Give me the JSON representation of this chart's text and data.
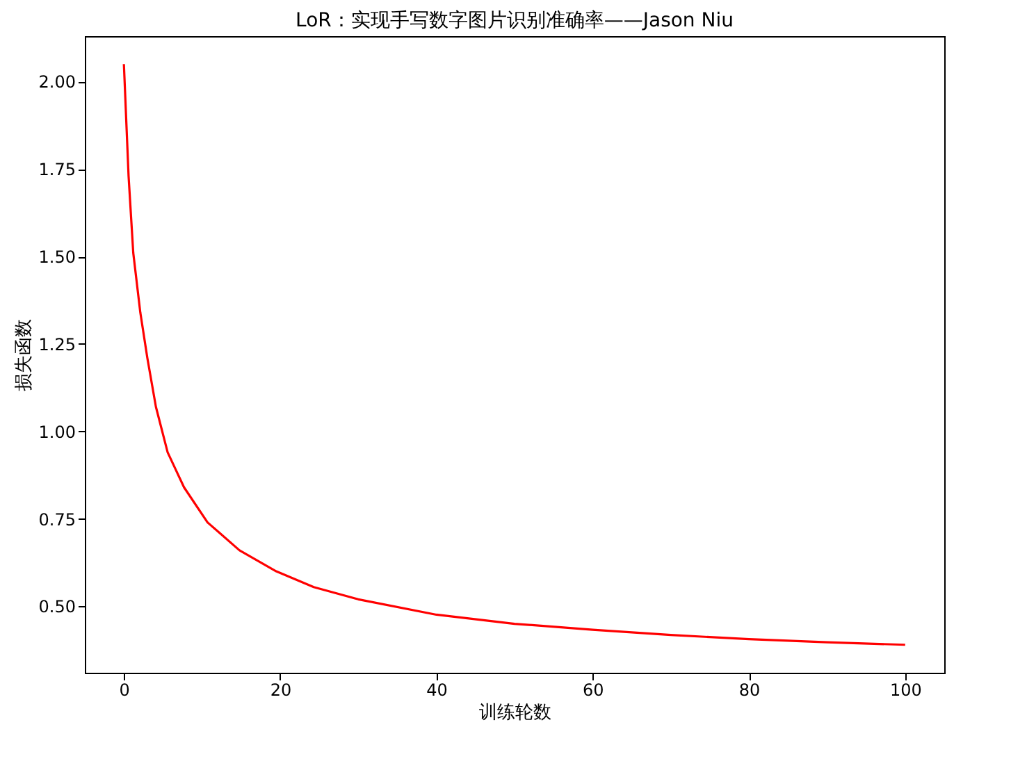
{
  "chart_data": {
    "type": "line",
    "title": "LoR：实现手写数字图片识别准确率——Jason Niu",
    "xlabel": "训练轮数",
    "ylabel": "损失函数",
    "x": [
      0,
      0.6,
      1.2,
      2.1,
      3.0,
      4.1,
      5.6,
      7.7,
      10.7,
      14.8,
      19.5,
      24.3,
      30,
      40,
      50,
      60,
      70,
      80,
      90,
      100
    ],
    "series": [
      {
        "color": "#ff0000",
        "values": [
          2.05,
          1.73,
          1.51,
          1.34,
          1.21,
          1.07,
          0.94,
          0.84,
          0.74,
          0.66,
          0.6,
          0.555,
          0.52,
          0.476,
          0.45,
          0.433,
          0.418,
          0.406,
          0.397,
          0.39
        ]
      }
    ],
    "xlim": [
      -5,
      105
    ],
    "xticks": [
      0,
      20,
      40,
      60,
      80,
      100
    ],
    "ylim": [
      0.31,
      2.13
    ],
    "yticks": [
      {
        "value": 0.5,
        "label": "0.50"
      },
      {
        "value": 0.75,
        "label": "0.75"
      },
      {
        "value": 1.0,
        "label": "1.00"
      },
      {
        "value": 1.25,
        "label": "1.25"
      },
      {
        "value": 1.5,
        "label": "1.50"
      },
      {
        "value": 1.75,
        "label": "1.75"
      },
      {
        "value": 2.0,
        "label": "2.00"
      }
    ],
    "grid": false,
    "marker": "none",
    "line_style": "solid"
  }
}
